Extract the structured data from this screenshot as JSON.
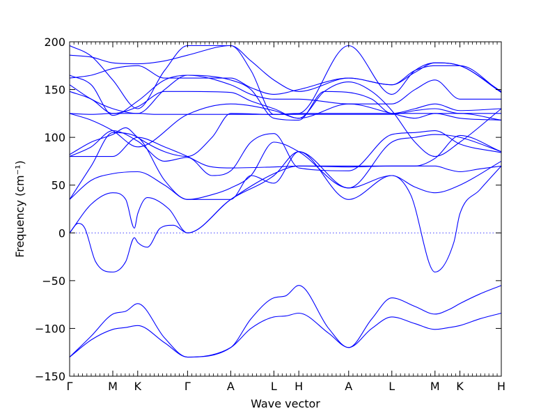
{
  "chart_data": {
    "type": "line",
    "title": "",
    "xlabel": "Wave vector",
    "ylabel": "Frequency ($cm^{-1}$)",
    "ylabel_display": "Frequency (cm⁻¹)",
    "ylim": [
      -150,
      200
    ],
    "yticks": [
      -150,
      -100,
      -50,
      0,
      50,
      100,
      150,
      200
    ],
    "ytick_labels": [
      "−150",
      "−100",
      "−50",
      "0",
      "50",
      "100",
      "150",
      "200"
    ],
    "xlim": [
      0,
      10
    ],
    "xticks": [
      {
        "x": 0,
        "label": "Γ"
      },
      {
        "x": 1,
        "label": "M"
      },
      {
        "x": 1.577,
        "label": "K"
      },
      {
        "x": 2.732,
        "label": "Γ"
      },
      {
        "x": 3.732,
        "label": "A"
      },
      {
        "x": 4.732,
        "label": "L"
      },
      {
        "x": 5.309,
        "label": "H"
      },
      {
        "x": 6.464,
        "label": "A"
      },
      {
        "x": 7.464,
        "label": "L"
      },
      {
        "x": 8.464,
        "label": "M"
      },
      {
        "x": 9.041,
        "label": "K"
      },
      {
        "x": 10.0,
        "label": "H"
      }
    ],
    "zero_line": true,
    "series_color": "#0000ff",
    "series": [
      {
        "x": [
          0,
          0.5,
          1,
          1.3,
          1.577,
          2.2,
          2.732,
          3.732,
          4.2,
          4.732,
          5.0,
          5.309,
          6.0,
          6.464,
          7.0,
          7.464,
          8.0,
          8.464,
          8.8,
          9.041,
          9.5,
          10.0
        ],
        "y": [
          -130,
          -112,
          -101,
          -99,
          -97,
          -115,
          -130,
          -120,
          -100,
          -88,
          -87,
          -84,
          -105,
          -120,
          -100,
          -88,
          -95,
          -101,
          -99,
          -97,
          -90,
          -84
        ]
      },
      {
        "x": [
          0,
          0.5,
          1,
          1.3,
          1.577,
          2.2,
          2.732,
          3.732,
          4.2,
          4.732,
          5.0,
          5.309,
          6.0,
          6.464,
          7.0,
          7.464,
          8.0,
          8.464,
          8.8,
          9.041,
          9.5,
          10.0
        ],
        "y": [
          -130,
          -108,
          -85,
          -82,
          -74,
          -110,
          -130,
          -120,
          -90,
          -68,
          -66,
          -55,
          -100,
          -120,
          -90,
          -68,
          -77,
          -85,
          -80,
          -74,
          -64,
          -55
        ]
      },
      {
        "x": [
          0,
          0.2,
          0.35,
          0.6,
          1,
          1.3,
          1.5,
          1.577,
          1.8,
          2.1,
          2.4,
          2.732,
          3.732,
          4.732,
          5.309,
          6.464,
          7.464,
          7.9,
          8.464,
          8.9,
          9.041,
          9.5,
          10.0
        ],
        "y": [
          0,
          10,
          5,
          -30,
          -41,
          -30,
          -5,
          -10,
          -15,
          5,
          8,
          0,
          35,
          60,
          85,
          35,
          60,
          40,
          -41,
          -10,
          20,
          45,
          70
        ]
      },
      {
        "x": [
          0,
          0.5,
          1,
          1.3,
          1.5,
          1.577,
          1.8,
          2.3,
          2.732,
          3.732,
          4.732,
          5.309,
          6.464,
          7.464,
          8.0,
          8.464,
          8.8,
          9.041,
          9.5,
          10.0
        ],
        "y": [
          0,
          30,
          42,
          35,
          5,
          20,
          37,
          25,
          0,
          35,
          62,
          70,
          70,
          70,
          70,
          70,
          66,
          64,
          67,
          70
        ]
      },
      {
        "x": [
          0,
          0.5,
          1,
          1.577,
          2.2,
          2.732,
          3.732,
          4.2,
          4.732,
          5.309,
          6.464,
          7.464,
          8.0,
          8.464,
          9.041,
          10.0
        ],
        "y": [
          35,
          55,
          62,
          64,
          50,
          35,
          35,
          60,
          52,
          85,
          47,
          60,
          48,
          42,
          50,
          75
        ]
      },
      {
        "x": [
          0,
          0.5,
          1,
          1.577,
          2.2,
          2.732,
          3.3,
          3.732,
          4.2,
          4.732,
          5.309,
          6.464,
          7.464,
          8.0,
          8.464,
          9.041,
          10.0
        ],
        "y": [
          35,
          70,
          105,
          100,
          55,
          35,
          40,
          47,
          60,
          95,
          85,
          47,
          95,
          100,
          103,
          100,
          85
        ]
      },
      {
        "x": [
          0,
          0.5,
          1,
          1.577,
          2.2,
          2.732,
          3.3,
          3.732,
          4.2,
          4.732,
          5.309,
          6.464,
          7.464,
          8.0,
          8.464,
          9.041,
          10.0
        ],
        "y": [
          80,
          90,
          107,
          96,
          75,
          79,
          60,
          65,
          95,
          104,
          68,
          65,
          103,
          105,
          107,
          93,
          84
        ]
      },
      {
        "x": [
          0,
          0.5,
          1,
          1.577,
          2.2,
          2.732,
          3.2,
          3.732,
          4.732,
          5.309,
          6.464,
          7.464,
          8.0,
          8.464,
          9.041,
          10.0
        ],
        "y": [
          80,
          80,
          80,
          100,
          90,
          80,
          70,
          68,
          69,
          70,
          69,
          70,
          70,
          78,
          102,
          85
        ]
      },
      {
        "x": [
          0,
          0.5,
          1,
          1.3,
          1.577,
          2.2,
          2.732,
          3.3,
          3.732,
          4.732,
          5.309,
          6.464,
          7.464,
          8.0,
          8.464,
          9.041,
          10.0
        ],
        "y": [
          82,
          95,
          103,
          110,
          100,
          85,
          80,
          100,
          125,
          124,
          125,
          125,
          125,
          125,
          125,
          125,
          118
        ]
      },
      {
        "x": [
          0,
          0.5,
          1,
          1.577,
          2.0,
          2.732,
          3.732,
          4.732,
          5.309,
          6.464,
          7.464,
          8.0,
          8.464,
          9.041,
          10.0
        ],
        "y": [
          125,
          124,
          125,
          125,
          124,
          124,
          124,
          124,
          124,
          124,
          124,
          128,
          130,
          125,
          125
        ]
      },
      {
        "x": [
          0,
          0.5,
          1,
          1.577,
          2.732,
          3.732,
          4.732,
          5.309,
          6.464,
          7.464,
          8.0,
          8.464,
          9.041,
          10.0
        ],
        "y": [
          125,
          118,
          107,
          90,
          124,
          135,
          128,
          120,
          135,
          125,
          120,
          125,
          120,
          118
        ]
      },
      {
        "x": [
          0,
          0.5,
          1,
          1.577,
          2.2,
          2.732,
          3.732,
          4.2,
          4.732,
          5.309,
          5.9,
          6.464,
          7.0,
          7.464,
          8.0,
          8.464,
          9.041,
          10.0
        ],
        "y": [
          148,
          140,
          125,
          132,
          148,
          148,
          147,
          138,
          130,
          120,
          148,
          158,
          148,
          128,
          95,
          80,
          95,
          130
        ]
      },
      {
        "x": [
          0,
          0.5,
          1,
          1.577,
          2.2,
          2.732,
          3.732,
          4.2,
          4.732,
          5.309,
          5.9,
          6.464,
          7.0,
          7.464,
          8.0,
          8.464,
          9.041,
          10.0
        ],
        "y": [
          155,
          140,
          130,
          125,
          150,
          165,
          160,
          150,
          120,
          118,
          148,
          147,
          140,
          125,
          130,
          135,
          128,
          130
        ]
      },
      {
        "x": [
          0,
          0.5,
          1,
          1.577,
          2.2,
          2.732,
          3.732,
          4.2,
          4.732,
          5.309,
          6.464,
          7.464,
          8.0,
          8.464,
          9.041,
          10.0
        ],
        "y": [
          165,
          155,
          123,
          138,
          160,
          165,
          155,
          145,
          140,
          140,
          135,
          135,
          150,
          160,
          140,
          140
        ]
      },
      {
        "x": [
          0,
          0.5,
          1,
          1.577,
          2.2,
          2.732,
          3.732,
          4.2,
          4.732,
          5.309,
          6.464,
          7.464,
          8.0,
          8.464,
          9.041,
          10.0
        ],
        "y": [
          162,
          165,
          172,
          175,
          162,
          162,
          162,
          152,
          145,
          150,
          162,
          155,
          170,
          175,
          175,
          147
        ]
      },
      {
        "x": [
          0,
          0.5,
          1,
          1.577,
          2.2,
          2.732,
          3.732,
          4.2,
          4.732,
          5.309,
          6.464,
          7.464,
          8.0,
          8.464,
          9.041,
          10.0
        ],
        "y": [
          186,
          184,
          178,
          177,
          180,
          186,
          196,
          180,
          160,
          148,
          162,
          155,
          168,
          178,
          175,
          148
        ]
      },
      {
        "x": [
          0,
          0.5,
          1,
          1.577,
          2.2,
          2.732,
          3.732,
          4.2,
          4.732,
          5.309,
          6.464,
          7.464,
          8.0,
          8.464,
          9.041,
          10.0
        ],
        "y": [
          196,
          185,
          160,
          130,
          170,
          196,
          196,
          170,
          124,
          125,
          196,
          145,
          170,
          178,
          175,
          147
        ]
      }
    ]
  }
}
